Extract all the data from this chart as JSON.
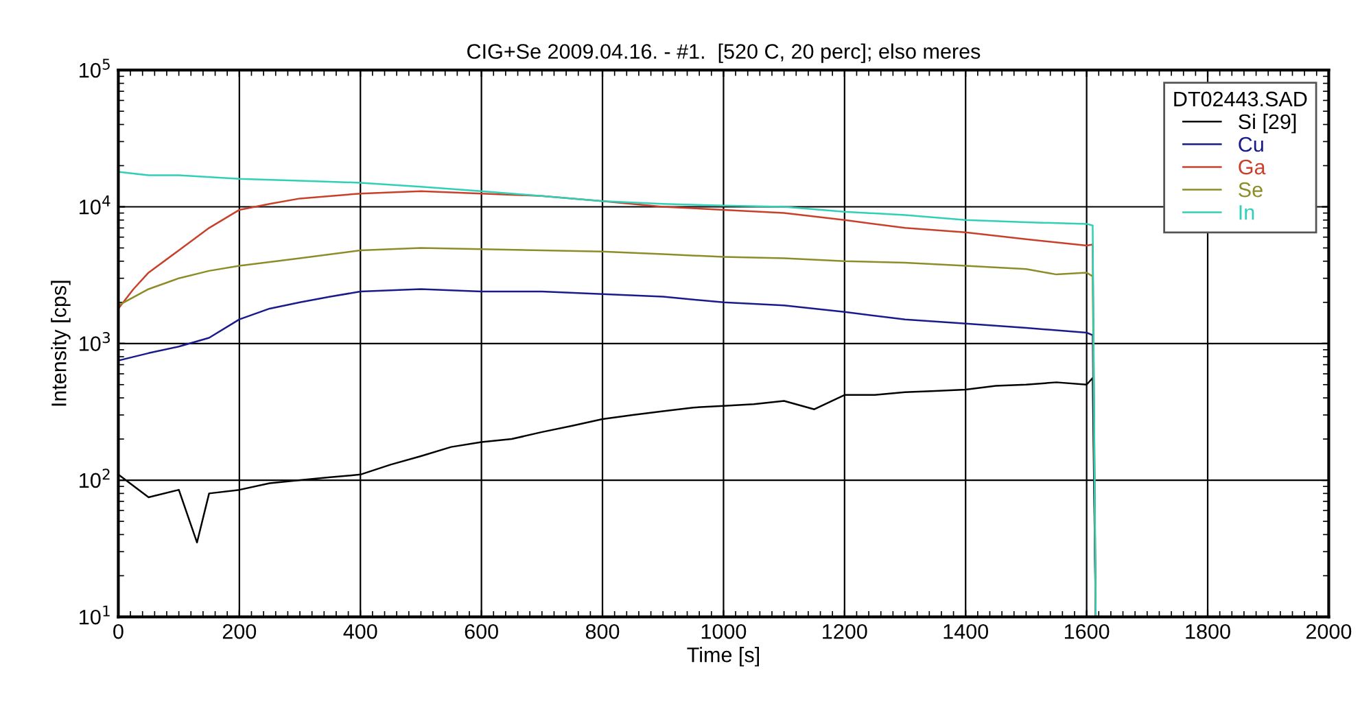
{
  "chart_data": {
    "type": "line",
    "title": "CIG+Se 2009.04.16. - #1.  [520 C, 20 perc]; elso meres",
    "xlabel": "Time [s]",
    "ylabel": "Intensity [cps]",
    "legend_title": "DT02443.SAD",
    "log": "y",
    "grid": true,
    "legend": "top right",
    "marker": "none",
    "line_style": "solid",
    "xlim": [
      0,
      2000
    ],
    "xticks": [
      0,
      200,
      400,
      600,
      800,
      1000,
      1200,
      1400,
      1600,
      1800,
      2000
    ],
    "ylim": [
      10,
      100000
    ],
    "yticks": [
      {
        "value": 10,
        "label": "10$^{1}$"
      },
      {
        "value": 100,
        "label": "10$^{2}$"
      },
      {
        "value": 1000,
        "label": "10$^{3}$"
      },
      {
        "value": 10000,
        "label": "10$^{4}$"
      },
      {
        "value": 100000,
        "label": "10$^{5}$"
      }
    ],
    "series": [
      {
        "name": "Si [29]",
        "color": "#000000",
        "x": [
          0,
          50,
          100,
          130,
          150,
          200,
          250,
          300,
          350,
          400,
          450,
          500,
          550,
          600,
          650,
          700,
          750,
          800,
          850,
          900,
          950,
          1000,
          1050,
          1100,
          1150,
          1200,
          1250,
          1300,
          1350,
          1400,
          1450,
          1500,
          1550,
          1600,
          1610,
          1615,
          2000
        ],
        "values": [
          110,
          75,
          85,
          35,
          80,
          85,
          95,
          100,
          105,
          110,
          130,
          150,
          175,
          190,
          200,
          225,
          250,
          280,
          300,
          320,
          340,
          350,
          360,
          380,
          330,
          420,
          420,
          440,
          450,
          460,
          490,
          500,
          520,
          500,
          560,
          10,
          10
        ]
      },
      {
        "name": "Cu",
        "color": "#1a1a8c",
        "x": [
          0,
          50,
          100,
          150,
          200,
          250,
          300,
          350,
          400,
          500,
          600,
          700,
          800,
          900,
          1000,
          1100,
          1200,
          1300,
          1400,
          1500,
          1600,
          1610,
          1615,
          2000
        ],
        "values": [
          750,
          850,
          950,
          1100,
          1500,
          1800,
          2000,
          2200,
          2400,
          2500,
          2400,
          2400,
          2300,
          2200,
          2000,
          1900,
          1700,
          1500,
          1400,
          1300,
          1200,
          1150,
          10,
          10
        ]
      },
      {
        "name": "Ga",
        "color": "#c8402a",
        "x": [
          0,
          25,
          50,
          100,
          150,
          200,
          250,
          300,
          400,
          500,
          600,
          700,
          800,
          900,
          1000,
          1100,
          1200,
          1300,
          1400,
          1500,
          1600,
          1610,
          1615,
          2000
        ],
        "values": [
          1800,
          2500,
          3300,
          4800,
          7000,
          9500,
          10500,
          11500,
          12500,
          13000,
          12500,
          12000,
          11000,
          10000,
          9500,
          9000,
          8000,
          7000,
          6500,
          5800,
          5200,
          5300,
          10,
          10
        ]
      },
      {
        "name": "Se",
        "color": "#8c8c28",
        "x": [
          0,
          50,
          100,
          150,
          200,
          300,
          400,
          500,
          600,
          700,
          800,
          900,
          1000,
          1100,
          1200,
          1300,
          1400,
          1500,
          1550,
          1600,
          1610,
          1615,
          2000
        ],
        "values": [
          1900,
          2500,
          3000,
          3400,
          3700,
          4200,
          4800,
          5000,
          4900,
          4800,
          4700,
          4500,
          4300,
          4200,
          4000,
          3900,
          3700,
          3500,
          3200,
          3300,
          3100,
          10,
          10
        ]
      },
      {
        "name": "In",
        "color": "#30d0b8",
        "x": [
          0,
          50,
          100,
          200,
          300,
          400,
          500,
          600,
          700,
          800,
          900,
          1000,
          1100,
          1200,
          1300,
          1400,
          1500,
          1600,
          1610,
          1615,
          2000
        ],
        "values": [
          18000,
          17000,
          17000,
          16000,
          15500,
          15000,
          14000,
          13000,
          12000,
          11000,
          10500,
          10200,
          10000,
          9200,
          8700,
          8000,
          7700,
          7500,
          7300,
          10,
          10
        ]
      }
    ]
  }
}
